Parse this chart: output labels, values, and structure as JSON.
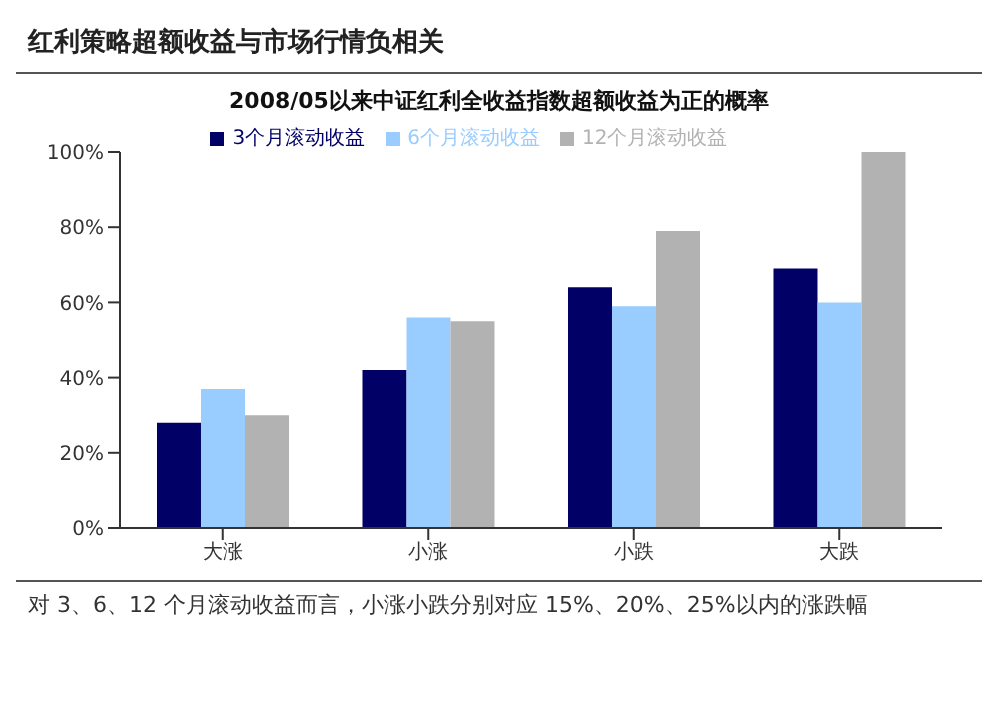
{
  "chart_data": {
    "type": "bar",
    "title": "红利策略超额收益与市场行情负相关",
    "subtitle": "2008/05以来中证红利全收益指数超额收益为正的概率",
    "categories": [
      "大涨",
      "小涨",
      "小跌",
      "大跌"
    ],
    "series": [
      {
        "name": "3个月滚动收益",
        "color": "#000066",
        "values": [
          28,
          42,
          64,
          69
        ]
      },
      {
        "name": "6个月滚动收益",
        "color": "#99ccff",
        "values": [
          37,
          56,
          59,
          60
        ]
      },
      {
        "name": "12个月滚动收益",
        "color": "#b2b2b2",
        "values": [
          30,
          55,
          79,
          100
        ]
      }
    ],
    "ylim": [
      0,
      100
    ],
    "yticks": [
      {
        "value": 0,
        "label": "0%"
      },
      {
        "value": 20,
        "label": "20%"
      },
      {
        "value": 40,
        "label": "40%"
      },
      {
        "value": 60,
        "label": "60%"
      },
      {
        "value": 80,
        "label": "80%"
      },
      {
        "value": 100,
        "label": "100%"
      }
    ],
    "grid": false,
    "legend": "top",
    "annotations": [
      "对 3、6、12 个月滚动收益而言，小涨小跌分别对应 15%、20%、25%以内的涨跌幅"
    ]
  }
}
